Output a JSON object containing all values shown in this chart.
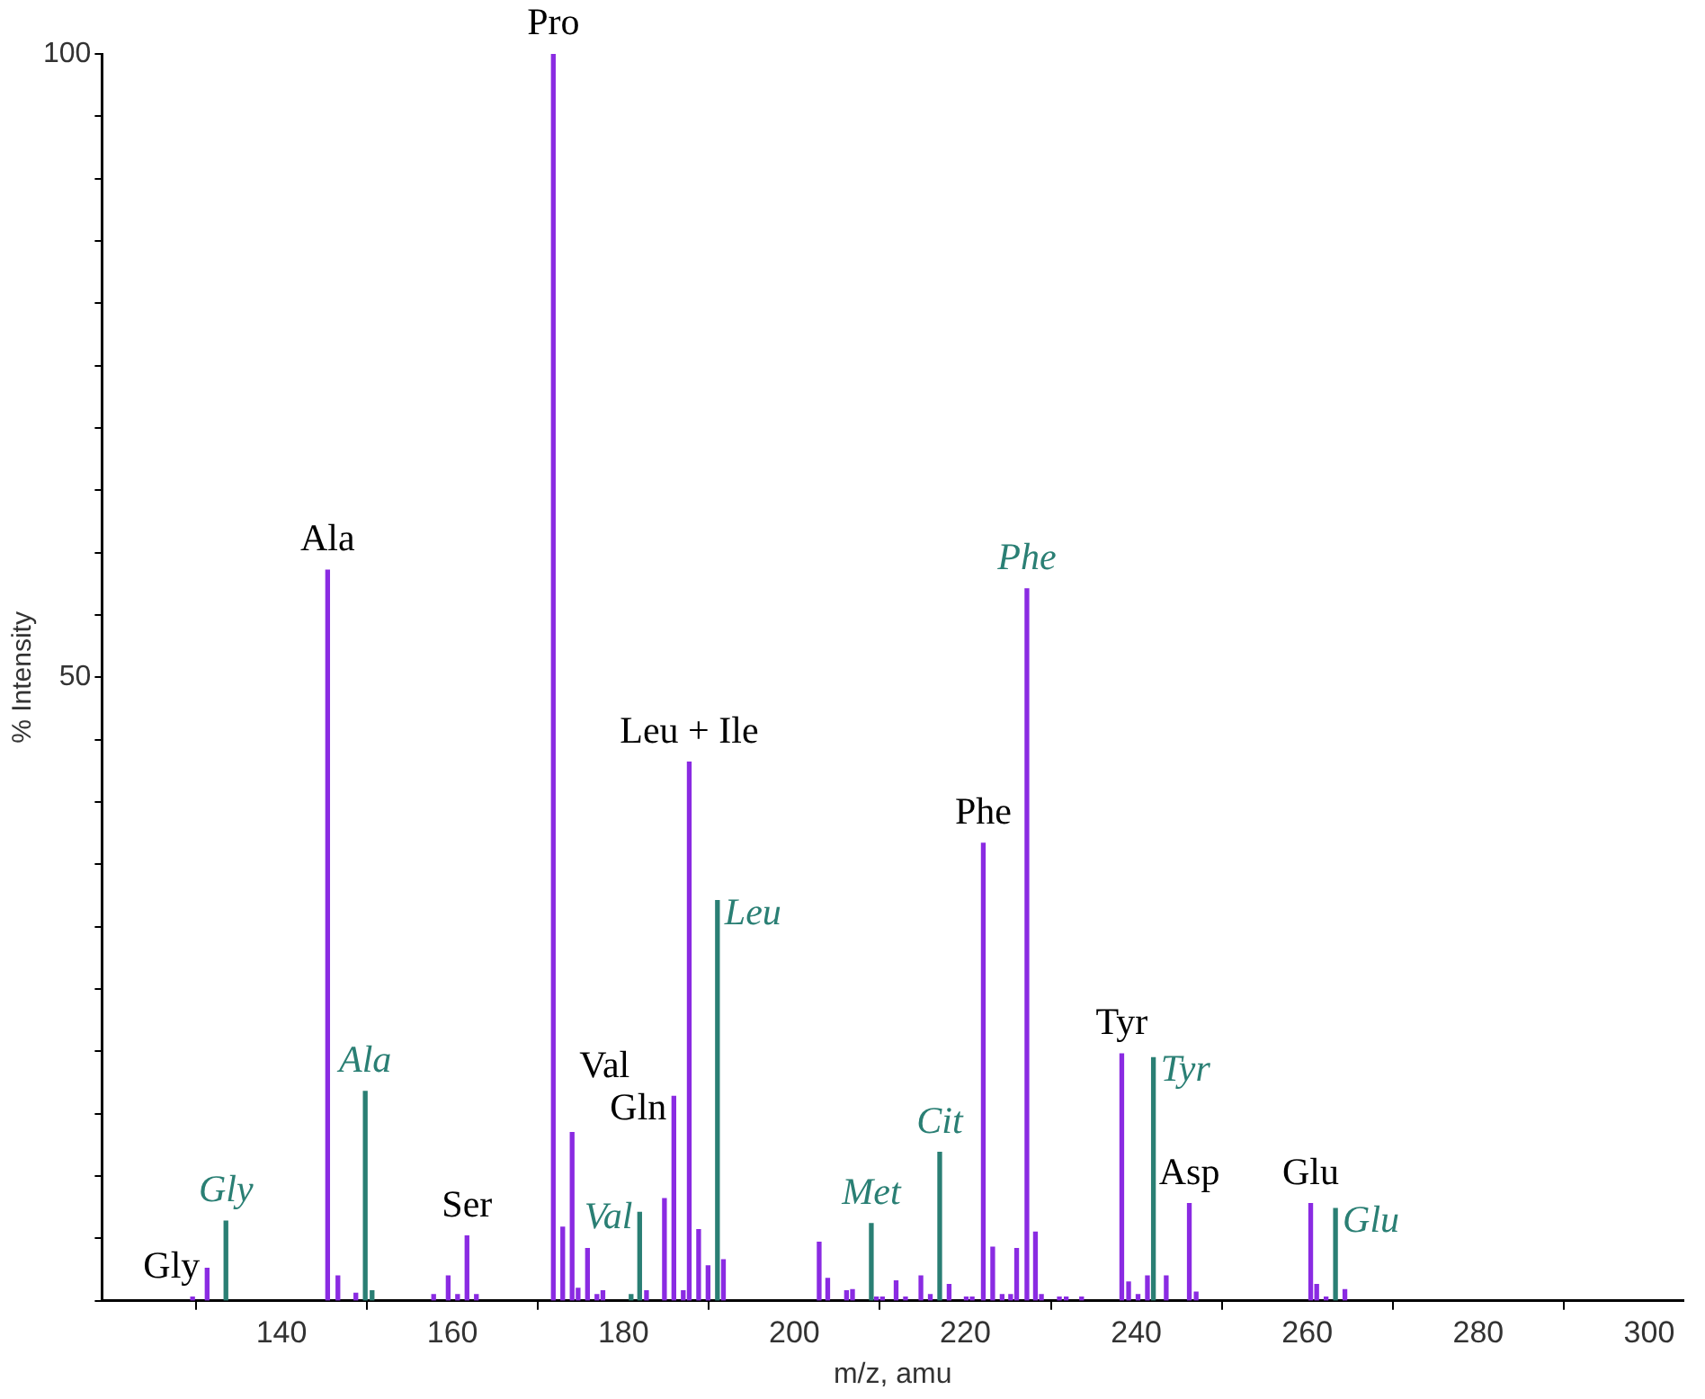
{
  "chart_data": {
    "type": "bar",
    "xlabel": "m/z, amu",
    "ylabel": "% Intensity",
    "xlim": [
      119,
      304
    ],
    "xticks": [
      140,
      160,
      180,
      200,
      220,
      240,
      260,
      280,
      300
    ],
    "ylim": [
      0,
      100
    ],
    "yticks": [
      {
        "value": 0,
        "label": null
      },
      {
        "value": 5,
        "label": null
      },
      {
        "value": 10,
        "label": null
      },
      {
        "value": 15,
        "label": null
      },
      {
        "value": 20,
        "label": null
      },
      {
        "value": 25,
        "label": null
      },
      {
        "value": 30,
        "label": null
      },
      {
        "value": 35,
        "label": null
      },
      {
        "value": 40,
        "label": null
      },
      {
        "value": 45,
        "label": null
      },
      50,
      {
        "value": 55,
        "label": null
      },
      {
        "value": 60,
        "label": null
      },
      {
        "value": 65,
        "label": null
      },
      {
        "value": 70,
        "label": null
      },
      {
        "value": 75,
        "label": null
      },
      {
        "value": 80,
        "label": null
      },
      {
        "value": 85,
        "label": null
      },
      {
        "value": 90,
        "label": null
      },
      {
        "value": 95,
        "label": null
      },
      100
    ],
    "grid": false,
    "legend": false,
    "series": [
      {
        "color": "#8a2be2",
        "x": [
          129.6,
          131.3,
          145.4,
          146.6,
          148.7,
          157.8,
          159.5,
          160.6,
          161.7,
          162.8,
          171.8,
          172.9,
          174.0,
          174.7,
          175.8,
          176.9,
          177.6,
          182.7,
          184.8,
          185.9,
          187.0,
          187.7,
          188.8,
          189.9,
          191.7,
          202.9,
          203.9,
          206.1,
          206.8,
          209.6,
          210.3,
          211.9,
          213.0,
          214.8,
          215.9,
          218.1,
          220.1,
          220.8,
          222.1,
          223.2,
          224.3,
          225.3,
          226.0,
          228.2,
          228.9,
          231.0,
          231.8,
          233.6,
          238.3,
          239.1,
          240.2,
          241.3,
          243.5,
          246.2,
          247.0,
          260.4,
          261.1,
          262.2,
          264.4
        ],
        "values": [
          0.3,
          2.6,
          58.6,
          2.0,
          0.6,
          0.5,
          2.0,
          0.5,
          5.2,
          0.5,
          100,
          5.9,
          13.5,
          1.0,
          4.2,
          0.5,
          0.8,
          0.8,
          8.2,
          16.4,
          0.8,
          43.2,
          5.7,
          2.8,
          3.3,
          4.7,
          1.8,
          0.8,
          0.9,
          0.3,
          0.3,
          1.6,
          0.3,
          2.0,
          0.5,
          1.3,
          0.3,
          0.3,
          36.7,
          4.3,
          0.5,
          0.5,
          4.2,
          5.5,
          0.5,
          0.3,
          0.3,
          0.3,
          19.8,
          1.5,
          0.5,
          2.0,
          2.0,
          7.8,
          0.7,
          7.8,
          1.3,
          0.3,
          0.9
        ]
      },
      {
        "color": "#2a7f74",
        "colors": [
          "#2a7f74",
          "#2a7f74",
          "#2a7f74",
          "#2a7f74",
          "#2a7f74",
          "#2a7f74",
          "#2a7f74",
          "#2a7f74",
          "#8a2be2",
          "#2a7f74",
          "#2a7f74"
        ],
        "x": [
          133.5,
          149.8,
          150.6,
          180.9,
          181.9,
          191.0,
          209.0,
          217.0,
          227.2,
          242.0,
          263.3
        ],
        "values": [
          6.4,
          16.8,
          0.8,
          0.5,
          7.1,
          32.1,
          6.2,
          11.9,
          57.1,
          19.5,
          7.4
        ]
      }
    ],
    "annotations": [
      {
        "text": "Pro",
        "x": 171.8,
        "y": 100
      },
      {
        "text": "Ala",
        "x": 145.4,
        "y": 58.6
      },
      {
        "text": "Phe",
        "x": 227.2,
        "y": 57.1
      },
      {
        "text": "Leu + Ile",
        "x": 187.7,
        "y": 43.2
      },
      {
        "text": "Phe",
        "x": 222.1,
        "y": 36.7
      },
      {
        "text": "Leu",
        "x": 191.0,
        "y": 32.1
      },
      {
        "text": "Tyr",
        "x": 238.3,
        "y": 19.8
      },
      {
        "text": "Tyr",
        "x": 242.0,
        "y": 19.5
      },
      {
        "text": "Ala",
        "x": 149.8,
        "y": 16.8
      },
      {
        "text": "Gln",
        "x": 185.9,
        "y": 16.4
      },
      {
        "text": "Val",
        "x": 174.0,
        "y": 13.5
      },
      {
        "text": "Cit",
        "x": 217.0,
        "y": 11.9
      },
      {
        "text": "Asp",
        "x": 246.2,
        "y": 7.8
      },
      {
        "text": "Glu",
        "x": 260.4,
        "y": 7.8
      },
      {
        "text": "Glu",
        "x": 263.3,
        "y": 7.4
      },
      {
        "text": "Val",
        "x": 181.9,
        "y": 7.1
      },
      {
        "text": "Gly",
        "x": 133.5,
        "y": 6.4
      },
      {
        "text": "Met",
        "x": 209.0,
        "y": 6.2
      },
      {
        "text": "Ser",
        "x": 161.7,
        "y": 5.2
      },
      {
        "text": "Gly",
        "x": 131.3,
        "y": 2.6
      }
    ]
  }
}
